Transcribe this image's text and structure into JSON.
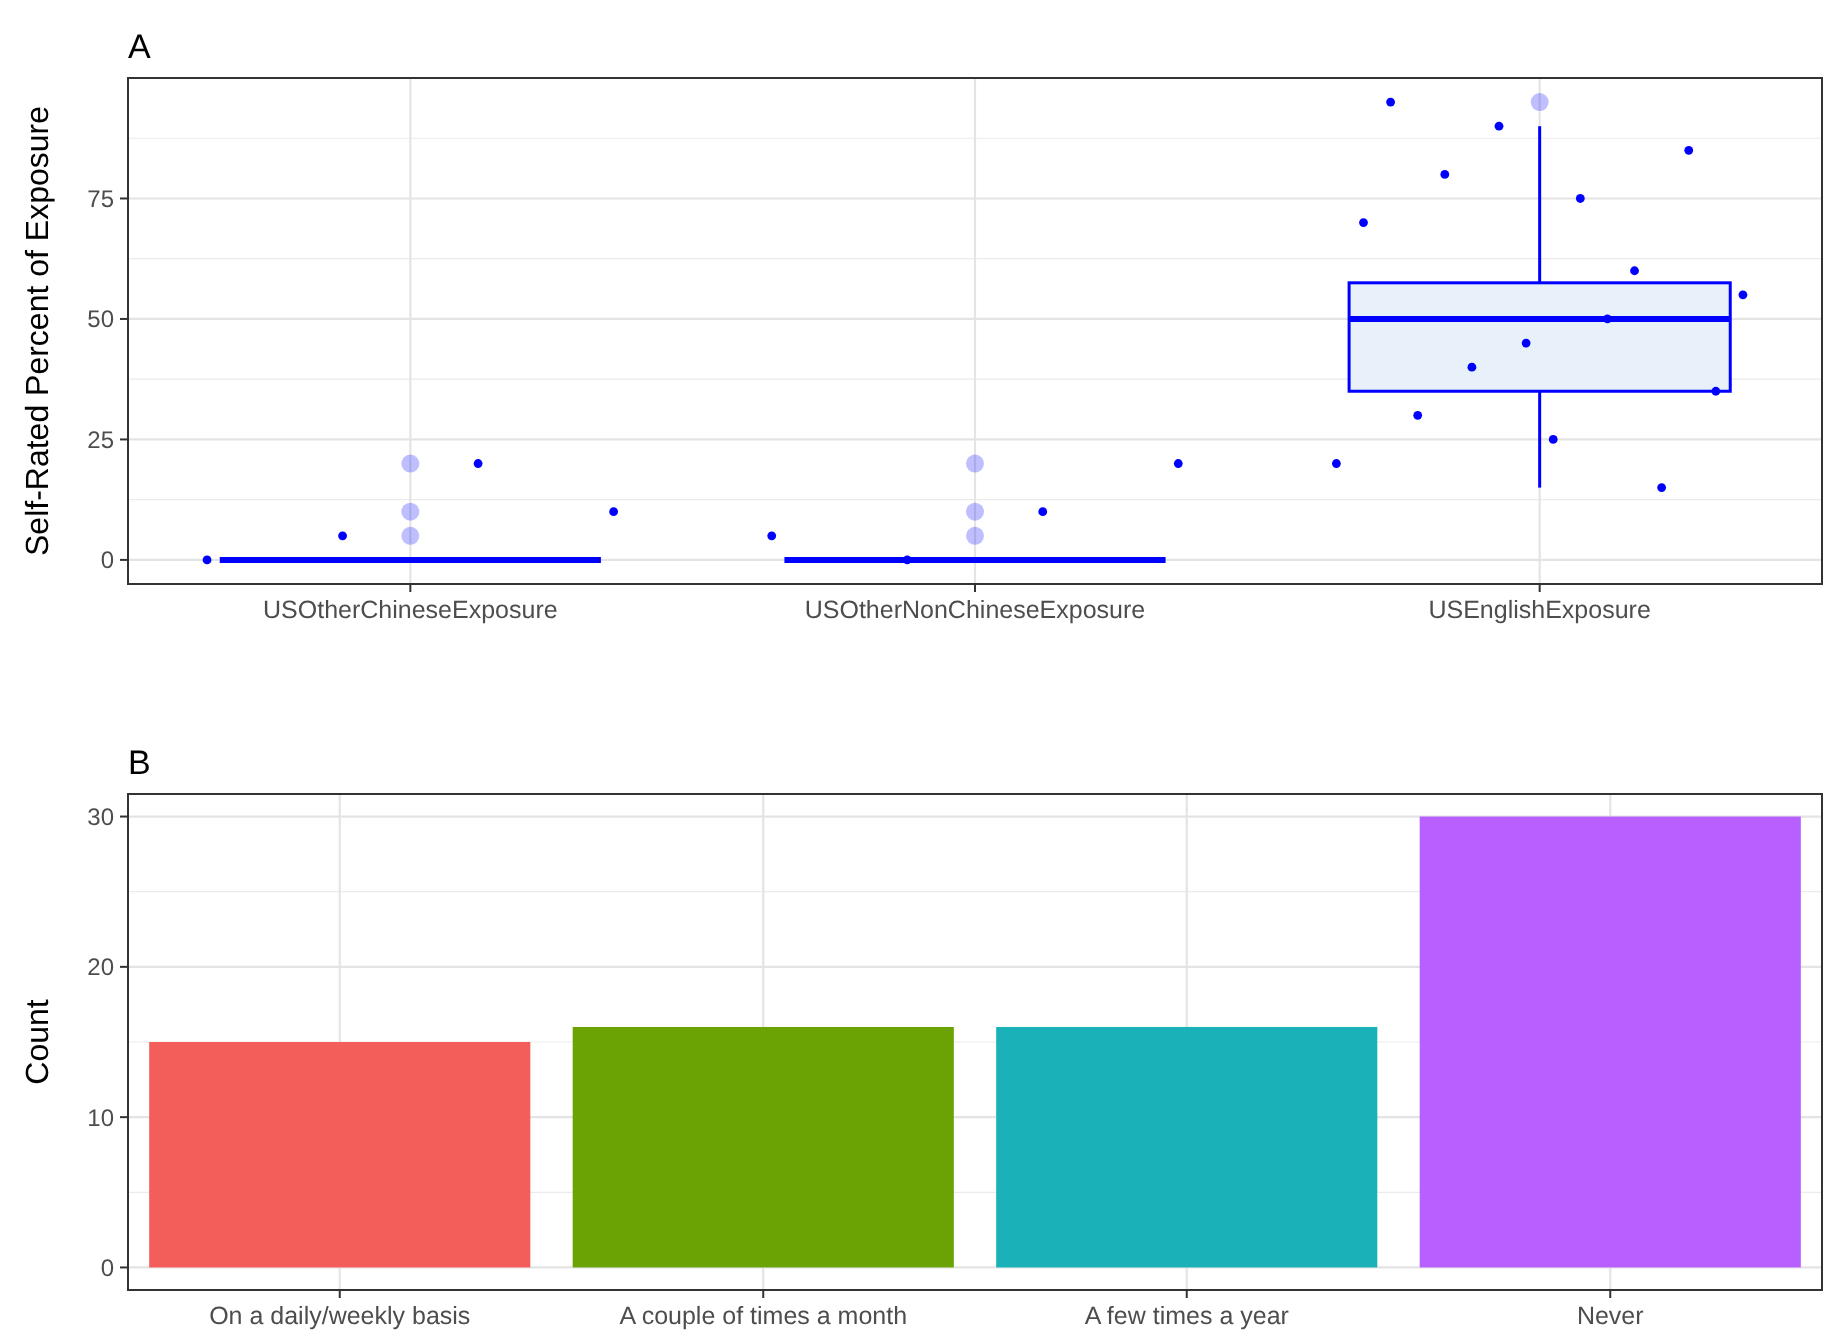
{
  "chart_data": [
    {
      "type": "box",
      "title": "A",
      "ylabel": "Self-Rated Percent of Exposure",
      "categories": [
        "USOtherChineseExposure",
        "USOtherNonChineseExposure",
        "USEnglishExposure"
      ],
      "ylim": [
        -5,
        100
      ],
      "yticks": [
        0,
        25,
        50,
        75
      ],
      "grid": true,
      "series": [
        {
          "color": "#0000ff",
          "boxes": [
            {
              "low": 0,
              "q1": 0,
              "median": 0,
              "q3": 0,
              "high": 0,
              "outliers": [
                5,
                10,
                20
              ]
            },
            {
              "low": 0,
              "q1": 0,
              "median": 0,
              "q3": 0,
              "high": 0,
              "outliers": [
                5,
                10,
                20
              ]
            },
            {
              "low": 15,
              "q1": 35,
              "median": 50,
              "q3": 57.5,
              "high": 90,
              "outliers": [
                95
              ]
            }
          ]
        },
        {
          "type": "scatter",
          "color": "#0000ff",
          "x": [
            "USOtherChineseExposure",
            "USOtherChineseExposure",
            "USOtherChineseExposure",
            "USOtherChineseExposure",
            "USOtherNonChineseExposure",
            "USOtherNonChineseExposure",
            "USOtherNonChineseExposure",
            "USOtherNonChineseExposure",
            "USEnglishExposure",
            "USEnglishExposure",
            "USEnglishExposure",
            "USEnglishExposure",
            "USEnglishExposure",
            "USEnglishExposure",
            "USEnglishExposure",
            "USEnglishExposure",
            "USEnglishExposure",
            "USEnglishExposure",
            "USEnglishExposure",
            "USEnglishExposure",
            "USEnglishExposure",
            "USEnglishExposure",
            "USEnglishExposure",
            "USEnglishExposure"
          ],
          "values": [
            0,
            5,
            20,
            10,
            5,
            0,
            10,
            20,
            20,
            70,
            95,
            30,
            80,
            40,
            90,
            45,
            25,
            75,
            50,
            60,
            15,
            85,
            35,
            55
          ]
        }
      ]
    },
    {
      "type": "bar",
      "title": "B",
      "ylabel": "Count",
      "categories": [
        "On a daily/weekly basis",
        "A couple of times a month",
        "A few times a year",
        "Never"
      ],
      "values": [
        15,
        16,
        16,
        30
      ],
      "colors": [
        "#f35e5a",
        "#6aa303",
        "#1ab2b8",
        "#b75fff"
      ],
      "ylim": [
        -1.5,
        31.5
      ],
      "yticks": [
        0,
        10,
        20,
        30
      ],
      "grid": true
    }
  ]
}
